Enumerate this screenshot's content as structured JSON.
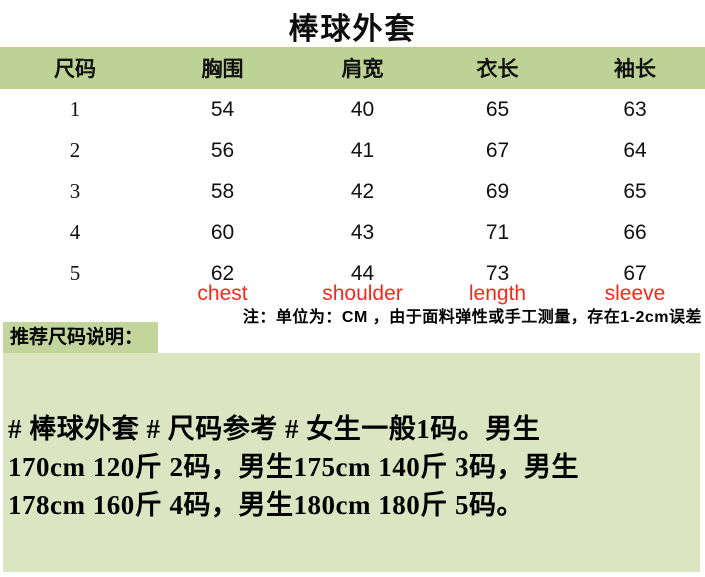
{
  "page": {
    "title": "棒球外套"
  },
  "size_table": {
    "columns": [
      "尺码",
      "胸围",
      "肩宽",
      "衣长",
      "袖长"
    ],
    "rows": [
      [
        "1",
        "54",
        "40",
        "65",
        "63"
      ],
      [
        "2",
        "56",
        "41",
        "67",
        "64"
      ],
      [
        "3",
        "58",
        "42",
        "69",
        "65"
      ],
      [
        "4",
        "60",
        "43",
        "71",
        "66"
      ],
      [
        "5",
        "62",
        "44",
        "73",
        "67"
      ]
    ],
    "english_labels": [
      "chest",
      "shoulder",
      "length",
      "sleeve"
    ],
    "note": "注：单位为：CM ，由于面料弹性或手工测量，存在1-2cm误差"
  },
  "recommendation": {
    "label": "推荐尺码说明：",
    "lines": [
      "# 棒球外套 # 尺码参考 # 女生一般1码。男生",
      "170cm 120斤 2码，男生175cm 140斤 3码，男生",
      "178cm 160斤 4码，男生180cm 180斤 5码。"
    ]
  },
  "colors": {
    "header_green": "#bdd395",
    "label_green": "#c2d69c",
    "panel_green": "#dbe5c1",
    "accent_red": "#f9281a"
  }
}
